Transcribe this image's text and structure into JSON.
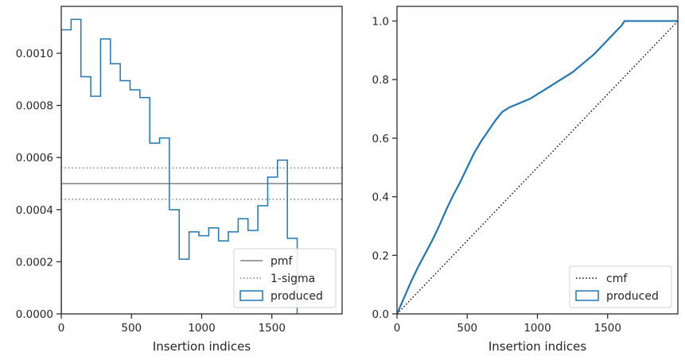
{
  "chart_data": [
    {
      "type": "step-histogram",
      "xlabel": "Insertion indices",
      "ylabel": "",
      "xlim": [
        0,
        2000
      ],
      "ylim": [
        0,
        0.00118
      ],
      "xticks": [
        0,
        500,
        1000,
        1500
      ],
      "xtick_labels": [
        "0",
        "500",
        "1000",
        "1500"
      ],
      "yticks": [
        0,
        0.0002,
        0.0004,
        0.0006,
        0.0008,
        0.001
      ],
      "ytick_labels": [
        "0.0000",
        "0.0002",
        "0.0004",
        "0.0006",
        "0.0008",
        "0.0010"
      ],
      "legend_position": "lower-right",
      "bin_edges": [
        0,
        70,
        140,
        210,
        280,
        350,
        420,
        490,
        560,
        630,
        700,
        770,
        840,
        910,
        980,
        1050,
        1120,
        1190,
        1260,
        1330,
        1400,
        1470,
        1540,
        1610,
        1680
      ],
      "series": [
        {
          "name": "pmf",
          "style": "solid",
          "color": "#808080",
          "type": "hline",
          "y": 0.0005
        },
        {
          "name": "1-sigma",
          "style": "dotted",
          "color": "#808080",
          "type": "hline-pair",
          "y": [
            0.00044,
            0.00056
          ]
        },
        {
          "name": "produced",
          "style": "step",
          "color": "#1f77b4",
          "values": [
            0.00109,
            0.00113,
            0.00091,
            0.000835,
            0.001055,
            0.00096,
            0.000895,
            0.00086,
            0.00083,
            0.000655,
            0.000675,
            0.0004,
            0.00021,
            0.000315,
            0.0003,
            0.00033,
            0.00028,
            0.000315,
            0.000365,
            0.00032,
            0.000415,
            0.000525,
            0.00059,
            0.00029
          ]
        }
      ],
      "tail": {
        "x": 1680,
        "y_end": -5e-05
      }
    },
    {
      "type": "line",
      "xlabel": "Insertion indices",
      "ylabel": "",
      "xlim": [
        0,
        2000
      ],
      "ylim": [
        0,
        1.05
      ],
      "xticks": [
        0,
        500,
        1000,
        1500
      ],
      "xtick_labels": [
        "0",
        "500",
        "1000",
        "1500"
      ],
      "yticks": [
        0,
        0.2,
        0.4,
        0.6,
        0.8,
        1.0
      ],
      "ytick_labels": [
        "0.0",
        "0.2",
        "0.4",
        "0.6",
        "0.8",
        "1.0"
      ],
      "legend_position": "lower-right",
      "series": [
        {
          "name": "cmf",
          "style": "dotted",
          "color": "#000000",
          "x": [
            0,
            2000
          ],
          "y": [
            0,
            1.0
          ]
        },
        {
          "name": "produced",
          "style": "step-curve",
          "color": "#1f77b4",
          "x": [
            0,
            50,
            100,
            150,
            200,
            250,
            300,
            350,
            400,
            450,
            500,
            550,
            600,
            650,
            700,
            750,
            800,
            850,
            900,
            950,
            1000,
            1050,
            1100,
            1150,
            1200,
            1250,
            1300,
            1350,
            1400,
            1450,
            1500,
            1550,
            1600,
            1620,
            2000
          ],
          "y": [
            0,
            0.055,
            0.11,
            0.16,
            0.205,
            0.25,
            0.3,
            0.355,
            0.405,
            0.45,
            0.5,
            0.55,
            0.59,
            0.625,
            0.66,
            0.69,
            0.705,
            0.715,
            0.725,
            0.735,
            0.75,
            0.765,
            0.78,
            0.795,
            0.81,
            0.825,
            0.845,
            0.865,
            0.885,
            0.91,
            0.935,
            0.96,
            0.985,
            1.0,
            1.0
          ]
        }
      ]
    }
  ]
}
